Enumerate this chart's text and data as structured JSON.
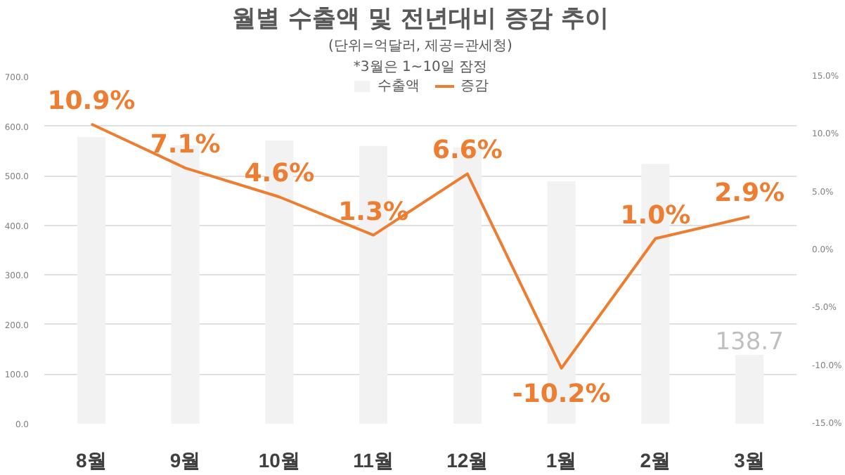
{
  "chart_data": {
    "type": "bar",
    "title": "월별 수출액 및 전년대비 증감 추이",
    "subtitle": "(단위=억달러, 제공=관세청)",
    "annotations": [
      "*3월은 1~10일 잠정"
    ],
    "categories": [
      "8월",
      "9월",
      "10월",
      "11월",
      "12월",
      "1월",
      "2월",
      "3월"
    ],
    "series": [
      {
        "name": "수출액",
        "color": "#f2f2f2",
        "values": [
          578,
          561,
          571,
          560,
          557,
          489,
          524,
          138.7
        ],
        "value_labels": [
          null,
          null,
          null,
          null,
          null,
          null,
          null,
          "138.7"
        ]
      },
      {
        "name": "증감",
        "type": "line",
        "axis": "y2",
        "color": "#ed7d31",
        "values": [
          10.9,
          7.1,
          4.6,
          1.3,
          6.6,
          -10.2,
          1.0,
          2.9
        ],
        "value_labels": [
          "10.9%",
          "7.1%",
          "4.6%",
          "1.3%",
          "6.6%",
          "-10.2%",
          "1.0%",
          "2.9%"
        ]
      }
    ],
    "ylim": [
      0,
      700
    ],
    "yticks": [
      {
        "value": 0,
        "label": "0.0"
      },
      {
        "value": 100,
        "label": "100.0"
      },
      {
        "value": 200,
        "label": "200.0"
      },
      {
        "value": 300,
        "label": "300.0"
      },
      {
        "value": 400,
        "label": "400.0"
      },
      {
        "value": 500,
        "label": "500.0"
      },
      {
        "value": 600,
        "label": "600.0"
      },
      {
        "value": 700,
        "label": "700.0"
      }
    ],
    "y2lim": [
      -15,
      15
    ],
    "y2ticks": [
      {
        "value": -15,
        "label": "-15.0%"
      },
      {
        "value": -10,
        "label": "-10.0%"
      },
      {
        "value": -5,
        "label": "-5.0%"
      },
      {
        "value": 0,
        "label": "0.0%"
      },
      {
        "value": 5,
        "label": "5.0%"
      },
      {
        "value": 10,
        "label": "10.0%"
      },
      {
        "value": 15,
        "label": "15.0%"
      }
    ],
    "grid": "y",
    "legend": "top",
    "line_style": "solid"
  }
}
